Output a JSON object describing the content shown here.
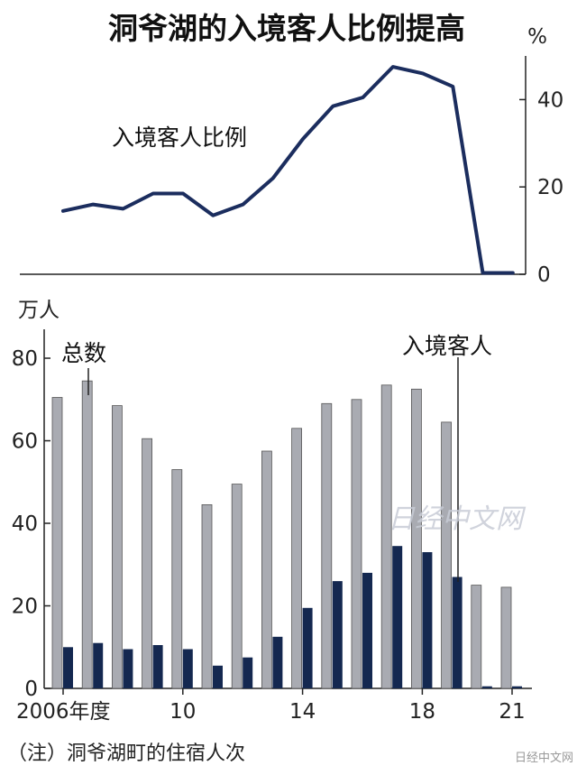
{
  "title": "洞爷湖的入境客人比例提高",
  "note": "（注）洞爷湖町的住宿人次",
  "watermark": "日经中文网",
  "credit": "日经中文网",
  "colors": {
    "line": "#1b2d5e",
    "total_bar": "#a9abb2",
    "inbound_bar": "#142850",
    "axis": "#222222"
  },
  "chart_data": [
    {
      "type": "line",
      "unit": "%",
      "series_label": "入境客人比例",
      "x": [
        2006,
        2007,
        2008,
        2009,
        2010,
        2011,
        2012,
        2013,
        2014,
        2015,
        2016,
        2017,
        2018,
        2019,
        2020,
        2021
      ],
      "values": [
        14.5,
        16,
        15,
        18.5,
        18.5,
        13.5,
        16,
        22,
        31,
        38.5,
        40.5,
        47.5,
        46,
        43,
        0.3,
        0.3
      ],
      "ylim": [
        0,
        50
      ],
      "yticks": [
        "0",
        "20",
        "40"
      ],
      "grid": false
    },
    {
      "type": "bar",
      "unit": "万人",
      "x": [
        2006,
        2007,
        2008,
        2009,
        2010,
        2011,
        2012,
        2013,
        2014,
        2015,
        2016,
        2017,
        2018,
        2019,
        2020,
        2021
      ],
      "xtick_labels": [
        "2006年度",
        "",
        "",
        "",
        "10",
        "",
        "",
        "",
        "14",
        "",
        "",
        "",
        "18",
        "",
        "",
        "21"
      ],
      "ylim": [
        0,
        87
      ],
      "yticks": [
        "0",
        "20",
        "40",
        "60",
        "80"
      ],
      "series": [
        {
          "name": "总数",
          "values": [
            70.5,
            74.5,
            68.5,
            60.5,
            53,
            44.5,
            49.5,
            57.5,
            63,
            69,
            70,
            73.5,
            72.5,
            64.5,
            25,
            24.5
          ]
        },
        {
          "name": "入境客人",
          "values": [
            10,
            11,
            9.5,
            10.5,
            9.5,
            5.5,
            7.5,
            12.5,
            19.5,
            26,
            28,
            34.5,
            33,
            27,
            0.5,
            0.5
          ]
        }
      ],
      "grid": false
    }
  ]
}
